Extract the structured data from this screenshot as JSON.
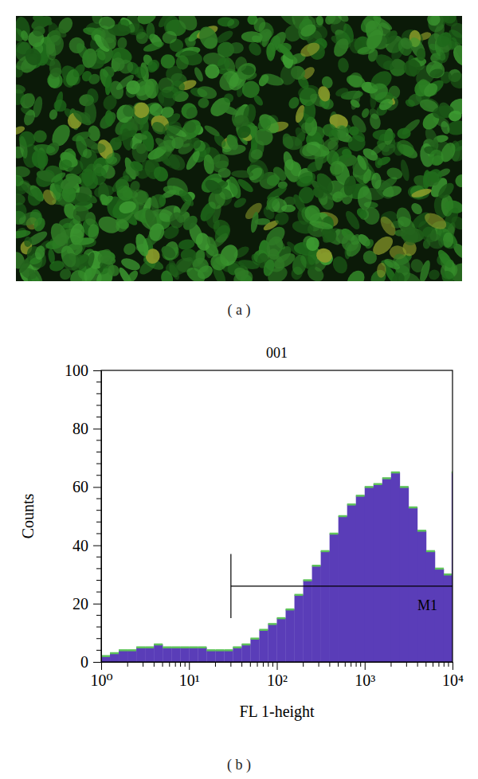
{
  "panels": {
    "a": {
      "label": "( a )"
    },
    "b": {
      "label": "( b )"
    }
  },
  "chart_data": {
    "type": "histogram",
    "title": "001",
    "x_label": "FL 1-height",
    "y_label": "Counts",
    "log": "x",
    "color": "#5a3db8",
    "bins": [
      1,
      1.259,
      1.585,
      1.995,
      2.512,
      3.162,
      3.981,
      5.012,
      6.31,
      7.943,
      10,
      12.59,
      15.85,
      19.95,
      25.12,
      31.62,
      39.81,
      50.12,
      63.1,
      79.43,
      100,
      125.9,
      158.5,
      199.5,
      251.2,
      316.2,
      398.1,
      501.2,
      631,
      794.3,
      1000,
      1259,
      1585,
      1995,
      2512,
      3162,
      3981,
      5012,
      6310,
      7943,
      9772,
      10000
    ],
    "values": [
      2,
      3,
      4,
      4,
      5,
      5,
      6,
      5,
      5,
      5,
      5,
      5,
      4,
      4,
      4,
      5,
      6,
      8,
      11,
      13,
      15,
      18,
      23,
      28,
      33,
      38,
      44,
      50,
      54,
      57,
      60,
      61,
      63,
      65,
      60,
      53,
      45,
      38,
      32,
      30,
      65
    ],
    "xlim": [
      1,
      10000
    ],
    "xticks": [
      {
        "value": 1,
        "label": "10⁰"
      },
      {
        "value": 10,
        "label": "10¹"
      },
      {
        "value": 100,
        "label": "10²"
      },
      {
        "value": 1000,
        "label": "10³"
      },
      {
        "value": 10000,
        "label": "10⁴"
      }
    ],
    "xminor": [
      2,
      3,
      4,
      5,
      6,
      7,
      8,
      9,
      20,
      30,
      40,
      50,
      60,
      70,
      80,
      90,
      200,
      300,
      400,
      500,
      600,
      700,
      800,
      900,
      2000,
      3000,
      4000,
      5000,
      6000,
      7000,
      8000,
      9000
    ],
    "ylim": [
      0,
      100
    ],
    "yticks": [
      0,
      20,
      40,
      60,
      80,
      100
    ],
    "yminor": [
      4,
      8,
      12,
      16,
      24,
      28,
      32,
      36,
      44,
      48,
      52,
      56,
      64,
      68,
      72,
      76,
      84,
      88,
      92,
      96
    ],
    "gate": {
      "label": "M1",
      "x": [
        30,
        10000
      ],
      "y": 26,
      "y_span": [
        15,
        37
      ]
    }
  }
}
